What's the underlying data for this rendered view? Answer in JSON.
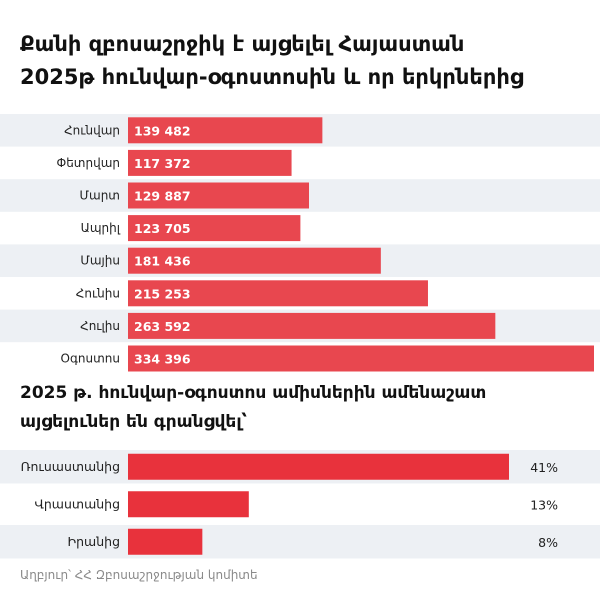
{
  "title_line1": "Քանի զբոսաշրջիկ է այցելել Հայաստան",
  "title_line2": "2025թ հունվար-օգոստոսին և որ երկրներից",
  "subtitle_line1": "2025 թ. հունվար-օգոստոս ամիսներին ամենաշատ",
  "subtitle_line2": "այցելուներ են գրանցվել՝",
  "source": "Աղբյուր՝ ՀՀ Զբոսաշրջության կոմիտե",
  "colors": {
    "bar1": "#e8474f",
    "bar2": "#e8323c",
    "band": "#edf0f4"
  },
  "chart_data": [
    {
      "type": "bar",
      "orientation": "horizontal",
      "categories": [
        "Հունվար",
        "Փետրվար",
        "Մարտ",
        "Ապրիլ",
        "Մայիս",
        "Հունիս",
        "Հուլիս",
        "Օգոստոս"
      ],
      "values": [
        139482,
        117372,
        129887,
        123705,
        181436,
        215253,
        263592,
        334396
      ],
      "value_labels": [
        "139 482",
        "117 372",
        "129 887",
        "123 705",
        "181 436",
        "215 253",
        "263 592",
        "334 396"
      ],
      "xlim": [
        0,
        334396
      ],
      "grid": false
    },
    {
      "type": "bar",
      "orientation": "horizontal",
      "categories": [
        "Ռուսաստանից",
        "Վրաստանից",
        "Իրանից"
      ],
      "values": [
        41,
        13,
        8
      ],
      "value_labels": [
        "41%",
        "13%",
        "8%"
      ],
      "xlim": [
        0,
        41
      ],
      "grid": false
    }
  ]
}
